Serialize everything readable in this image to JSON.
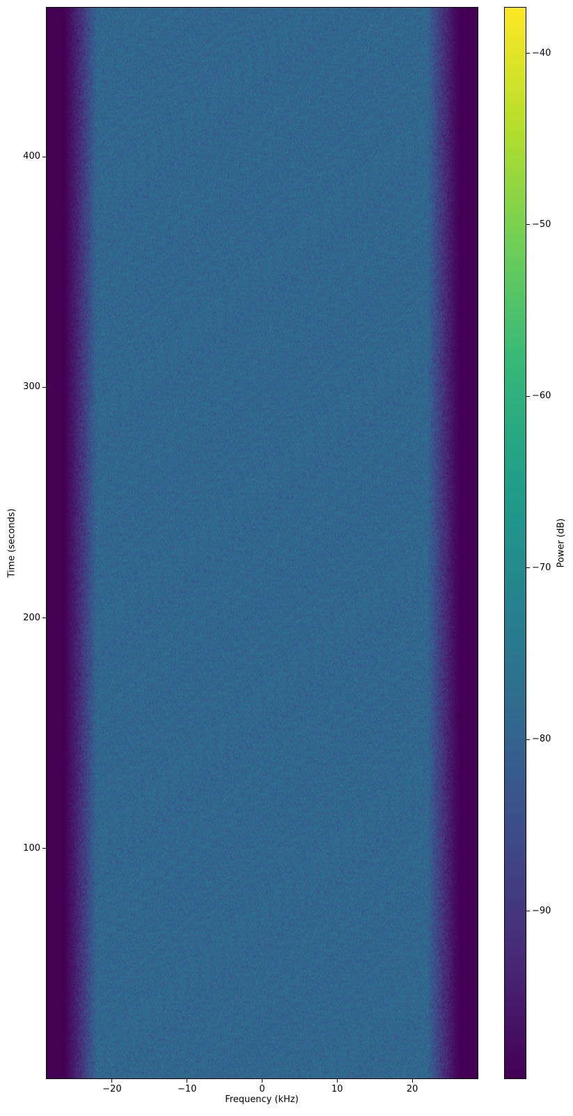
{
  "chart_data": {
    "type": "heatmap",
    "title": "",
    "xlabel": "Frequency (kHz)",
    "ylabel": "Time (seconds)",
    "xlim": [
      -28.8,
      28.8
    ],
    "ylim": [
      0,
      465
    ],
    "xticks": [
      -20,
      -10,
      0,
      10,
      20
    ],
    "yticks": [
      100,
      200,
      300,
      400
    ],
    "colormap": "viridis",
    "colorbar": {
      "label": "Power (dB)",
      "range": [
        -99.8,
        -37.3
      ],
      "ticks": [
        -90,
        -80,
        -70,
        -60,
        -50,
        -40
      ]
    },
    "spectrum_profile": {
      "inband_level_db": -79,
      "noise_floor_db": -99.8,
      "passband_edge_khz": 22,
      "stopband_edge_khz": 26.5,
      "noise_std_db": 2.5
    },
    "grid": false
  }
}
